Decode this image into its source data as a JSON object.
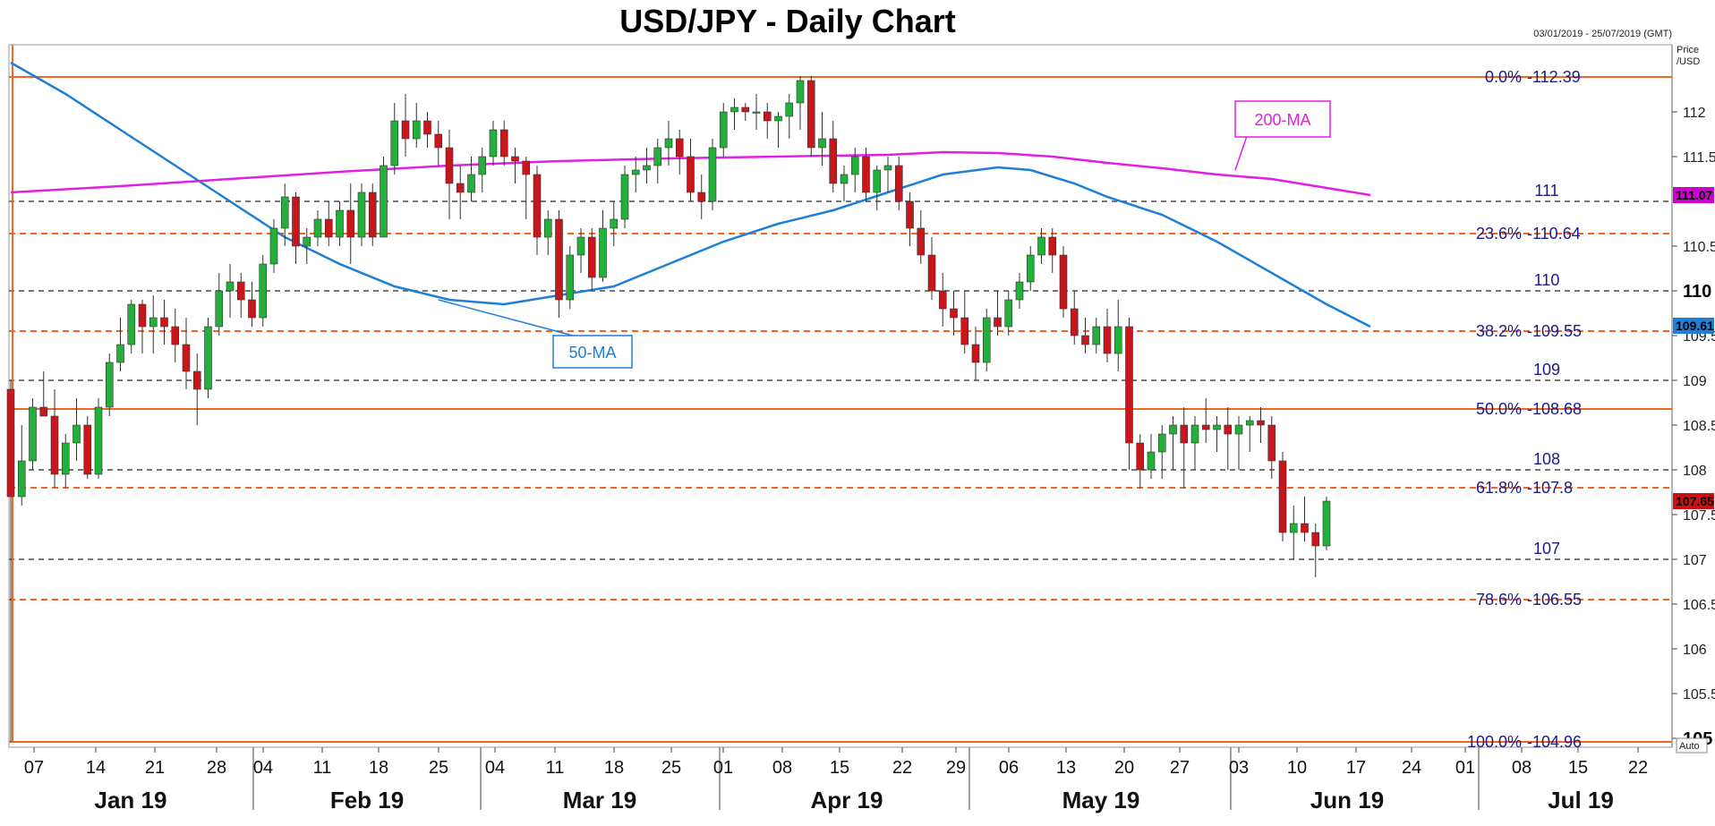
{
  "header": {
    "title": "USD/JPY - Daily Chart",
    "date_range": "03/01/2019 - 25/07/2019 (GMT)",
    "price_axis_caption_1": "Price",
    "price_axis_caption_2": "/USD",
    "auto_label": "Auto"
  },
  "chart_data": {
    "type": "candlestick",
    "title": "USD/JPY - Daily Chart",
    "ylim": [
      104.9,
      112.75
    ],
    "y_ticks": [
      "105.5",
      "106",
      "106.5",
      "107",
      "107.5",
      "108",
      "108.5",
      "109",
      "109.5",
      "110.5",
      "111.5",
      "112"
    ],
    "y_ticks_bold": [
      "105",
      "110"
    ],
    "x_date_ticks": [
      "07",
      "14",
      "21",
      "28",
      "04",
      "11",
      "18",
      "25",
      "04",
      "11",
      "18",
      "25",
      "01",
      "08",
      "15",
      "22",
      "29",
      "06",
      "13",
      "20",
      "27",
      "03",
      "10",
      "17",
      "24",
      "01",
      "08",
      "15",
      "22"
    ],
    "months": [
      "Jan 19",
      "Feb 19",
      "Mar 19",
      "Apr 19",
      "May 19",
      "Jun 19",
      "Jul 19"
    ],
    "fib_levels": [
      {
        "label": "0.0%",
        "value": 112.39,
        "value_text": "112.39",
        "style": "solid"
      },
      {
        "label": "23.6%",
        "value": 110.64,
        "value_text": "110.64",
        "style": "dashed"
      },
      {
        "label": "38.2%",
        "value": 109.55,
        "value_text": "109.55",
        "style": "dashed"
      },
      {
        "label": "50.0%",
        "value": 108.68,
        "value_text": "108.68",
        "style": "solid"
      },
      {
        "label": "61.8%",
        "value": 107.8,
        "value_text": "107.8",
        "style": "dashed"
      },
      {
        "label": "78.6%",
        "value": 106.55,
        "value_text": "106.55",
        "style": "dashed"
      },
      {
        "label": "100.0%",
        "value": 104.96,
        "value_text": "104.96",
        "style": "solid"
      }
    ],
    "round_levels": [
      {
        "label": "111",
        "value": 111
      },
      {
        "label": "110",
        "value": 110
      },
      {
        "label": "109",
        "value": 109
      },
      {
        "label": "108",
        "value": 108
      },
      {
        "label": "107",
        "value": 107
      }
    ],
    "price_tags": [
      {
        "label": "111.07",
        "value": 111.07,
        "color": "#cc00cc"
      },
      {
        "label": "109.61",
        "value": 109.61,
        "color": "#1e7fd8"
      },
      {
        "label": "107.65",
        "value": 107.65,
        "color": "#cc1010"
      }
    ],
    "moving_averages": [
      {
        "name": "50-MA",
        "color": "#1e7fd8",
        "points": [
          [
            0,
            112.55
          ],
          [
            5,
            112.2
          ],
          [
            10,
            111.8
          ],
          [
            15,
            111.4
          ],
          [
            20,
            111.0
          ],
          [
            25,
            110.6
          ],
          [
            30,
            110.3
          ],
          [
            35,
            110.05
          ],
          [
            40,
            109.9
          ],
          [
            45,
            109.85
          ],
          [
            50,
            109.95
          ],
          [
            55,
            110.05
          ],
          [
            60,
            110.3
          ],
          [
            65,
            110.55
          ],
          [
            70,
            110.75
          ],
          [
            75,
            110.9
          ],
          [
            80,
            111.1
          ],
          [
            85,
            111.3
          ],
          [
            90,
            111.38
          ],
          [
            93,
            111.35
          ],
          [
            97,
            111.2
          ],
          [
            100,
            111.05
          ],
          [
            105,
            110.85
          ],
          [
            110,
            110.55
          ],
          [
            115,
            110.2
          ],
          [
            120,
            109.85
          ],
          [
            124,
            109.6
          ]
        ]
      },
      {
        "name": "200-MA",
        "color": "#e020e0",
        "points": [
          [
            0,
            111.1
          ],
          [
            10,
            111.17
          ],
          [
            20,
            111.25
          ],
          [
            30,
            111.33
          ],
          [
            40,
            111.4
          ],
          [
            50,
            111.45
          ],
          [
            60,
            111.48
          ],
          [
            70,
            111.5
          ],
          [
            80,
            111.52
          ],
          [
            85,
            111.55
          ],
          [
            90,
            111.54
          ],
          [
            95,
            111.5
          ],
          [
            100,
            111.43
          ],
          [
            105,
            111.37
          ],
          [
            110,
            111.3
          ],
          [
            115,
            111.25
          ],
          [
            120,
            111.15
          ],
          [
            124,
            111.07
          ]
        ]
      }
    ],
    "candles": [
      [
        108.9,
        109.0,
        104.96,
        107.7
      ],
      [
        107.7,
        108.5,
        107.6,
        108.1
      ],
      [
        108.1,
        108.8,
        108.0,
        108.7
      ],
      [
        108.7,
        109.1,
        108.6,
        108.6
      ],
      [
        108.6,
        108.9,
        107.8,
        107.95
      ],
      [
        107.95,
        108.4,
        107.8,
        108.3
      ],
      [
        108.3,
        108.8,
        108.1,
        108.5
      ],
      [
        108.5,
        108.6,
        107.9,
        107.95
      ],
      [
        107.95,
        108.8,
        107.9,
        108.7
      ],
      [
        108.7,
        109.3,
        108.6,
        109.2
      ],
      [
        109.2,
        109.7,
        109.1,
        109.4
      ],
      [
        109.4,
        109.9,
        109.3,
        109.85
      ],
      [
        109.85,
        109.9,
        109.3,
        109.6
      ],
      [
        109.6,
        109.95,
        109.3,
        109.7
      ],
      [
        109.7,
        109.9,
        109.4,
        109.6
      ],
      [
        109.6,
        109.8,
        109.2,
        109.4
      ],
      [
        109.4,
        109.7,
        108.9,
        109.1
      ],
      [
        109.1,
        109.3,
        108.5,
        108.9
      ],
      [
        108.9,
        109.7,
        108.8,
        109.6
      ],
      [
        109.6,
        110.2,
        109.5,
        110.0
      ],
      [
        110.0,
        110.3,
        109.7,
        110.1
      ],
      [
        110.1,
        110.2,
        109.7,
        109.9
      ],
      [
        109.9,
        110.1,
        109.6,
        109.7
      ],
      [
        109.7,
        110.4,
        109.6,
        110.3
      ],
      [
        110.3,
        110.8,
        110.2,
        110.7
      ],
      [
        110.7,
        111.2,
        110.5,
        111.05
      ],
      [
        111.05,
        111.1,
        110.3,
        110.5
      ],
      [
        110.5,
        110.7,
        110.3,
        110.6
      ],
      [
        110.6,
        110.9,
        110.5,
        110.8
      ],
      [
        110.8,
        111.0,
        110.5,
        110.6
      ],
      [
        110.6,
        111.0,
        110.5,
        110.9
      ],
      [
        110.9,
        111.2,
        110.3,
        110.6
      ],
      [
        110.6,
        111.2,
        110.5,
        111.1
      ],
      [
        111.1,
        111.2,
        110.5,
        110.6
      ],
      [
        110.6,
        111.5,
        110.6,
        111.4
      ],
      [
        111.4,
        112.1,
        111.3,
        111.9
      ],
      [
        111.9,
        112.2,
        111.5,
        111.7
      ],
      [
        111.7,
        112.1,
        111.6,
        111.9
      ],
      [
        111.9,
        112.0,
        111.6,
        111.75
      ],
      [
        111.75,
        111.9,
        111.4,
        111.6
      ],
      [
        111.6,
        111.8,
        110.8,
        111.2
      ],
      [
        111.2,
        111.4,
        110.8,
        111.1
      ],
      [
        111.1,
        111.5,
        111.0,
        111.3
      ],
      [
        111.3,
        111.6,
        111.1,
        111.5
      ],
      [
        111.5,
        111.9,
        111.4,
        111.8
      ],
      [
        111.8,
        111.9,
        111.4,
        111.5
      ],
      [
        111.5,
        111.6,
        111.2,
        111.45
      ],
      [
        111.45,
        111.5,
        110.8,
        111.3
      ],
      [
        111.3,
        111.4,
        110.4,
        110.6
      ],
      [
        110.6,
        110.9,
        110.4,
        110.8
      ],
      [
        110.8,
        110.9,
        109.7,
        109.9
      ],
      [
        109.9,
        110.5,
        109.8,
        110.4
      ],
      [
        110.4,
        110.7,
        110.2,
        110.6
      ],
      [
        110.6,
        110.7,
        110.0,
        110.15
      ],
      [
        110.15,
        110.9,
        110.1,
        110.7
      ],
      [
        110.7,
        111.0,
        110.5,
        110.8
      ],
      [
        110.8,
        111.4,
        110.7,
        111.3
      ],
      [
        111.3,
        111.5,
        111.1,
        111.35
      ],
      [
        111.35,
        111.6,
        111.2,
        111.4
      ],
      [
        111.4,
        111.7,
        111.2,
        111.6
      ],
      [
        111.6,
        111.9,
        111.4,
        111.7
      ],
      [
        111.7,
        111.8,
        111.3,
        111.5
      ],
      [
        111.5,
        111.7,
        111.0,
        111.1
      ],
      [
        111.1,
        111.3,
        110.8,
        111.0
      ],
      [
        111.0,
        111.7,
        110.9,
        111.6
      ],
      [
        111.6,
        112.1,
        111.5,
        112.0
      ],
      [
        112.0,
        112.15,
        111.8,
        112.05
      ],
      [
        112.05,
        112.1,
        111.9,
        112.0
      ],
      [
        112.0,
        112.2,
        111.8,
        112.0
      ],
      [
        112.0,
        112.1,
        111.7,
        111.9
      ],
      [
        111.9,
        112.0,
        111.6,
        111.95
      ],
      [
        111.95,
        112.2,
        111.7,
        112.1
      ],
      [
        112.1,
        112.4,
        111.8,
        112.35
      ],
      [
        112.35,
        112.4,
        111.5,
        111.6
      ],
      [
        111.6,
        112.0,
        111.4,
        111.7
      ],
      [
        111.7,
        111.9,
        111.1,
        111.2
      ],
      [
        111.2,
        111.4,
        111.0,
        111.3
      ],
      [
        111.3,
        111.6,
        111.1,
        111.5
      ],
      [
        111.5,
        111.6,
        111.0,
        111.1
      ],
      [
        111.1,
        111.4,
        110.9,
        111.35
      ],
      [
        111.35,
        111.5,
        111.1,
        111.4
      ],
      [
        111.4,
        111.5,
        110.9,
        111.0
      ],
      [
        111.0,
        111.1,
        110.5,
        110.7
      ],
      [
        110.7,
        110.9,
        110.3,
        110.4
      ],
      [
        110.4,
        110.6,
        109.9,
        110.0
      ],
      [
        110.0,
        110.2,
        109.6,
        109.8
      ],
      [
        109.8,
        110.0,
        109.5,
        109.7
      ],
      [
        109.7,
        110.0,
        109.3,
        109.4
      ],
      [
        109.4,
        109.6,
        109.0,
        109.2
      ],
      [
        109.2,
        109.8,
        109.1,
        109.7
      ],
      [
        109.7,
        110.0,
        109.5,
        109.6
      ],
      [
        109.6,
        110.0,
        109.5,
        109.9
      ],
      [
        109.9,
        110.2,
        109.8,
        110.1
      ],
      [
        110.1,
        110.5,
        110.0,
        110.4
      ],
      [
        110.4,
        110.7,
        110.3,
        110.6
      ],
      [
        110.6,
        110.7,
        110.2,
        110.4
      ],
      [
        110.4,
        110.5,
        109.7,
        109.8
      ],
      [
        109.8,
        110.0,
        109.4,
        109.5
      ],
      [
        109.5,
        109.7,
        109.3,
        109.4
      ],
      [
        109.4,
        109.7,
        109.3,
        109.6
      ],
      [
        109.6,
        109.8,
        109.2,
        109.3
      ],
      [
        109.3,
        109.9,
        109.1,
        109.6
      ],
      [
        109.6,
        109.7,
        108.0,
        108.3
      ],
      [
        108.3,
        108.4,
        107.8,
        108.0
      ],
      [
        108.0,
        108.4,
        107.9,
        108.2
      ],
      [
        108.2,
        108.5,
        107.9,
        108.4
      ],
      [
        108.4,
        108.6,
        108.0,
        108.5
      ],
      [
        108.5,
        108.7,
        107.8,
        108.3
      ],
      [
        108.3,
        108.6,
        108.0,
        108.5
      ],
      [
        108.5,
        108.8,
        108.3,
        108.45
      ],
      [
        108.45,
        108.6,
        108.2,
        108.5
      ],
      [
        108.5,
        108.7,
        108.0,
        108.4
      ],
      [
        108.4,
        108.6,
        108.0,
        108.5
      ],
      [
        108.5,
        108.6,
        108.2,
        108.55
      ],
      [
        108.55,
        108.7,
        108.3,
        108.5
      ],
      [
        108.5,
        108.6,
        107.9,
        108.1
      ],
      [
        108.1,
        108.2,
        107.2,
        107.3
      ],
      [
        107.3,
        107.6,
        107.0,
        107.4
      ],
      [
        107.4,
        107.7,
        107.2,
        107.3
      ],
      [
        107.3,
        107.4,
        106.8,
        107.15
      ],
      [
        107.15,
        107.7,
        107.1,
        107.65
      ]
    ]
  }
}
